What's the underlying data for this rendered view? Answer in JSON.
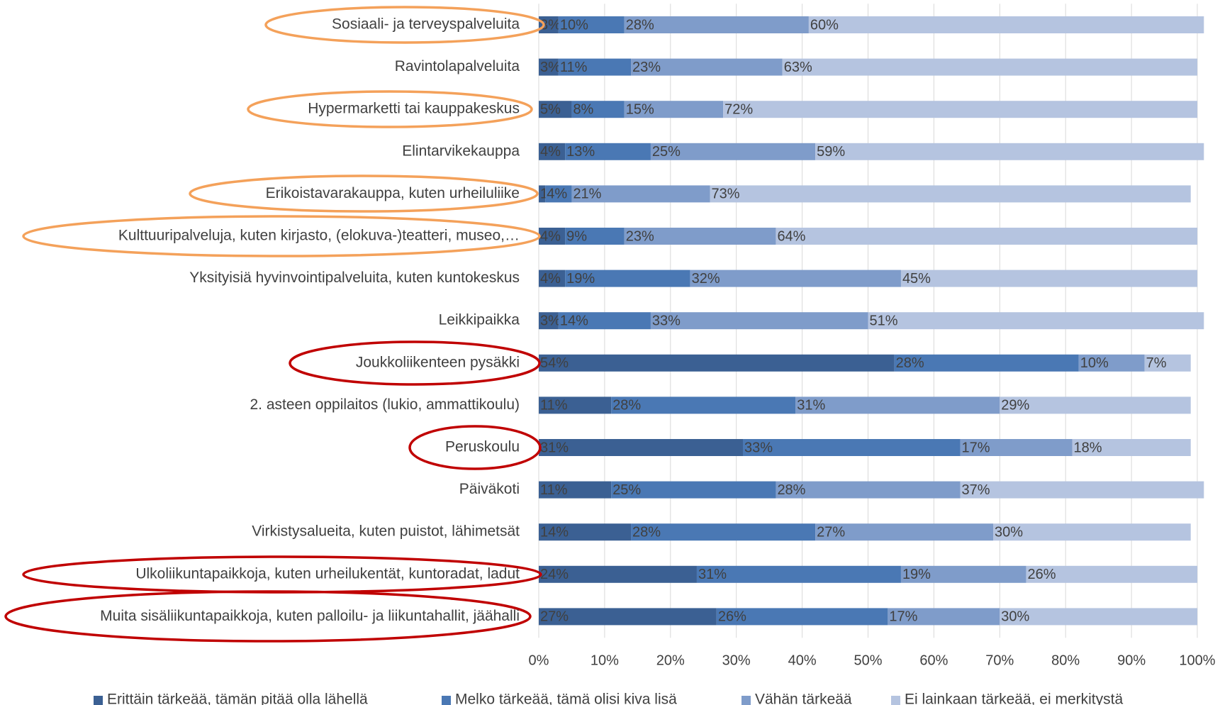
{
  "chart_data": {
    "type": "stacked_bar_horizontal",
    "categories": [
      "Sosiaali- ja terveyspalveluita",
      "Ravintolapalveluita",
      "Hypermarketti tai kauppakeskus",
      "Elintarvikekauppa",
      "Erikoistavarakauppa, kuten urheiluliike",
      "Kulttuuripalveluja, kuten kirjasto, (elokuva-)teatteri, museo,…",
      "Yksityisiä hyvinvointipalveluita, kuten kuntokeskus",
      "Leikkipaikka",
      "Joukkoliikenteen pysäkki",
      "2. asteen oppilaitos (lukio, ammattikoulu)",
      "Peruskoulu",
      "Päiväkoti",
      "Virkistysalueita, kuten puistot, lähimetsät",
      "Ulkoliikuntapaikkoja, kuten urheilukentät, kuntoradat, ladut",
      "Muita sisäliikuntapaikkoja, kuten palloilu- ja liikuntahallit, jäähalli"
    ],
    "series": [
      {
        "name": "Erittäin tärkeää, tämän pitää olla lähellä",
        "color": "#3b6093",
        "values": [
          3,
          3,
          5,
          4,
          1,
          4,
          4,
          3,
          54,
          11,
          31,
          11,
          14,
          24,
          27
        ],
        "value_labels": [
          "3%",
          "3%",
          "5%",
          "4%",
          "1%",
          "4%",
          "4%",
          "3%",
          "54%",
          "11%",
          "31%",
          "11%",
          "14%",
          "24%",
          "27%"
        ]
      },
      {
        "name": "Melko tärkeää, tämä olisi kiva lisä",
        "color": "#4a78b4",
        "values": [
          10,
          11,
          8,
          13,
          4,
          9,
          19,
          14,
          28,
          28,
          33,
          25,
          28,
          31,
          26
        ],
        "value_labels": [
          "10%",
          "11%",
          "8%",
          "13%",
          "4%",
          "9%",
          "19%",
          "14%",
          "28%",
          "28%",
          "33%",
          "25%",
          "28%",
          "31%",
          "26%"
        ]
      },
      {
        "name": "Vähän tärkeää",
        "color": "#7f9cca",
        "values": [
          28,
          23,
          15,
          25,
          21,
          23,
          32,
          33,
          10,
          31,
          17,
          28,
          27,
          19,
          17
        ],
        "value_labels": [
          "28%",
          "23%",
          "15%",
          "25%",
          "21%",
          "23%",
          "32%",
          "33%",
          "10%",
          "31%",
          "17%",
          "28%",
          "27%",
          "19%",
          "17%"
        ]
      },
      {
        "name": "Ei lainkaan tärkeää, ei merkitystä",
        "color": "#b5c4e0",
        "values": [
          60,
          63,
          72,
          59,
          73,
          64,
          45,
          51,
          7,
          29,
          18,
          37,
          30,
          26,
          30
        ],
        "value_labels": [
          "60%",
          "63%",
          "72%",
          "59%",
          "73%",
          "64%",
          "45%",
          "51%",
          "7%",
          "29%",
          "18%",
          "37%",
          "30%",
          "26%",
          "30%"
        ]
      }
    ],
    "xlim": [
      0,
      100
    ],
    "xticks": [
      {
        "value": 0,
        "label": "0%"
      },
      {
        "value": 10,
        "label": "10%"
      },
      {
        "value": 20,
        "label": "20%"
      },
      {
        "value": 30,
        "label": "30%"
      },
      {
        "value": 40,
        "label": "40%"
      },
      {
        "value": 50,
        "label": "50%"
      },
      {
        "value": 60,
        "label": "60%"
      },
      {
        "value": 70,
        "label": "70%"
      },
      {
        "value": 80,
        "label": "80%"
      },
      {
        "value": 90,
        "label": "90%"
      },
      {
        "value": 100,
        "label": "100%"
      }
    ],
    "grid": true,
    "legend": "bottom"
  }
}
